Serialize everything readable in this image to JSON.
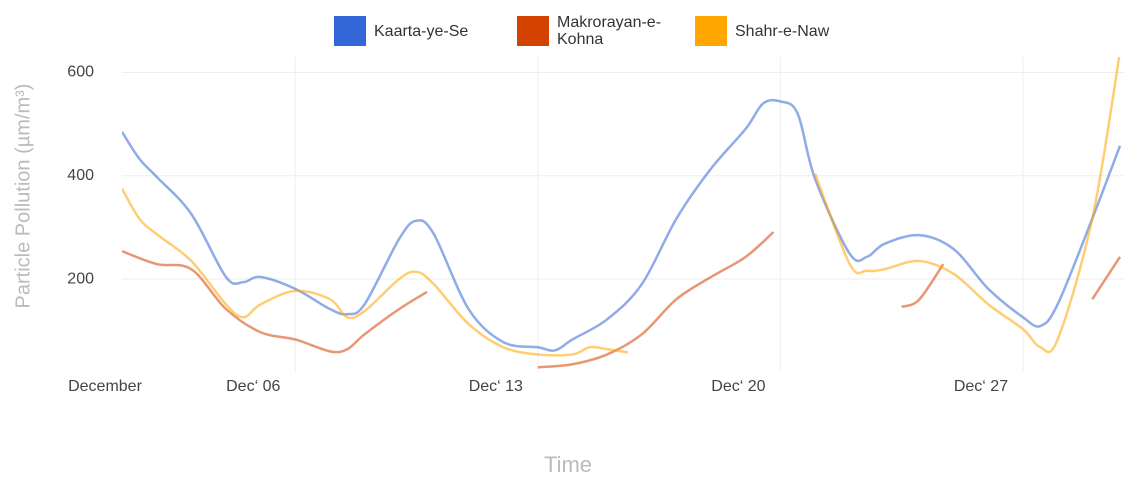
{
  "chart_data": {
    "type": "line",
    "x_label": "Time",
    "y_label": "Particle Pollution (µm/m³)",
    "xlim": [
      1,
      29.8
    ],
    "ylim": [
      20,
      630
    ],
    "xticks": [
      {
        "value": 1,
        "label": "December"
      },
      {
        "value": 6,
        "label": "Dec‘ 06"
      },
      {
        "value": 13,
        "label": "Dec‘ 13"
      },
      {
        "value": 20,
        "label": "Dec‘ 20"
      },
      {
        "value": 27,
        "label": "Dec‘ 27"
      }
    ],
    "yticks": [
      200,
      400,
      600
    ],
    "grid": true,
    "legend": "top",
    "series": [
      {
        "name": "Kaarta-ye-Se",
        "color": "#3366d6",
        "x": [
          1,
          1.5,
          2,
          3,
          4,
          4.5,
          5,
          6,
          7,
          7.5,
          8,
          9,
          9.5,
          10,
          11,
          12,
          13,
          13.5,
          14,
          15,
          16,
          17,
          18,
          19,
          19.5,
          20,
          20.5,
          21,
          22,
          22.5,
          23,
          24,
          25,
          26,
          27,
          27.5,
          28,
          29,
          29.8
        ],
        "values": [
          485,
          433,
          398,
          326,
          204,
          194,
          204,
          181,
          142,
          132,
          151,
          278,
          313,
          287,
          142,
          78,
          68,
          62,
          83,
          122,
          190,
          317,
          414,
          491,
          540,
          544,
          520,
          394,
          249,
          243,
          268,
          285,
          258,
          181,
          126,
          109,
          151,
          317,
          458
        ]
      },
      {
        "name": "Makrorayan-e-Kohna",
        "color": "#d44200",
        "x": [
          1,
          2,
          3,
          4,
          5,
          6,
          7,
          7.5,
          8,
          9,
          9.8,
          12.2,
          13,
          14,
          15,
          16,
          17,
          18,
          19,
          19.8,
          22.7,
          23.5,
          24,
          24.7,
          27.8,
          29,
          29.8
        ],
        "values": [
          254,
          229,
          219,
          142,
          97,
          83,
          60,
          64,
          93,
          142,
          175,
          null,
          29,
          35,
          54,
          93,
          161,
          204,
          243,
          291,
          null,
          146,
          160,
          229,
          null,
          161,
          243
        ]
      },
      {
        "name": "Shahr-e-Naw",
        "color": "#ffa600",
        "x": [
          1,
          1.5,
          2,
          3,
          4,
          4.5,
          5,
          6,
          7,
          7.5,
          8,
          9,
          9.5,
          10,
          11,
          12,
          13,
          14,
          14.5,
          15,
          15.6,
          20.8,
          21,
          22,
          22.5,
          23,
          24,
          25,
          26,
          27,
          27.5,
          28,
          29,
          29.8
        ],
        "values": [
          375,
          317,
          287,
          235,
          151,
          126,
          151,
          177,
          161,
          126,
          138,
          200,
          214,
          190,
          113,
          68,
          54,
          54,
          68,
          64,
          58,
          null,
          404,
          229,
          216,
          219,
          235,
          210,
          151,
          103,
          68,
          83,
          317,
          640
        ]
      }
    ]
  }
}
